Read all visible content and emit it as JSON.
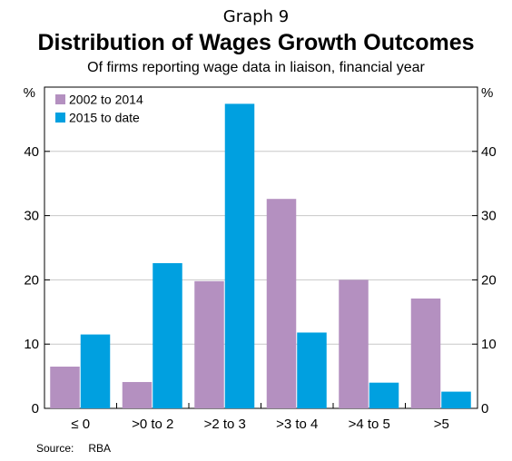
{
  "header": {
    "graph_label": "Graph 9",
    "title": "Distribution of Wages Growth Outcomes",
    "subtitle": "Of firms reporting wage data in liaison, financial year"
  },
  "footer": {
    "source_label": "Source:",
    "source_value": "RBA"
  },
  "chart_data": {
    "type": "bar",
    "title": "Distribution of Wages Growth Outcomes",
    "subtitle": "Of firms reporting wage data in liaison, financial year",
    "categories": [
      "≤ 0",
      ">0 to 2",
      ">2 to 3",
      ">3 to 4",
      ">4 to 5",
      ">5"
    ],
    "series": [
      {
        "name": "2002 to 2014",
        "color": "#b490c0",
        "values": [
          6.5,
          4.1,
          19.8,
          32.6,
          20.0,
          17.1
        ]
      },
      {
        "name": "2015 to date",
        "color": "#00a0e0",
        "values": [
          11.5,
          22.6,
          47.4,
          11.8,
          4.0,
          2.6
        ]
      }
    ],
    "ylabel_left": "%",
    "ylabel_right": "%",
    "ylim": [
      0,
      50
    ],
    "yticks": [
      0,
      10,
      20,
      30,
      40
    ],
    "grid": true,
    "legend_position": "top-left"
  }
}
